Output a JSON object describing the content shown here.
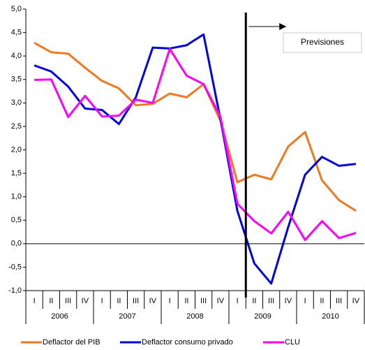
{
  "chart_data": {
    "type": "line",
    "categories": [
      "I",
      "II",
      "III",
      "IV",
      "I",
      "II",
      "III",
      "IV",
      "I",
      "II",
      "III",
      "IV",
      "I",
      "II",
      "III",
      "IV",
      "I",
      "II",
      "III",
      "IV"
    ],
    "years": [
      "2006",
      "2007",
      "2008",
      "2009",
      "2010"
    ],
    "annotation": "Previsiones",
    "ylim": [
      -1.0,
      5.0
    ],
    "yticks": [
      {
        "value": -1.0,
        "label": "-1,0"
      },
      {
        "value": -0.5,
        "label": "-0,5"
      },
      {
        "value": 0.0,
        "label": "0,0"
      },
      {
        "value": 0.5,
        "label": "0,5"
      },
      {
        "value": 1.0,
        "label": "1,0"
      },
      {
        "value": 1.5,
        "label": "1,5"
      },
      {
        "value": 2.0,
        "label": "2,0"
      },
      {
        "value": 2.5,
        "label": "2,5"
      },
      {
        "value": 3.0,
        "label": "3,0"
      },
      {
        "value": 3.5,
        "label": "3,5"
      },
      {
        "value": 4.0,
        "label": "4,0"
      },
      {
        "value": 4.5,
        "label": "4,5"
      },
      {
        "value": 5.0,
        "label": "5,0"
      }
    ],
    "series": [
      {
        "name": "Deflactor del PIB",
        "color": "#f07820",
        "values": [
          4.28,
          4.08,
          4.05,
          3.75,
          3.47,
          3.31,
          2.95,
          2.98,
          3.2,
          3.12,
          3.4,
          2.62,
          1.31,
          1.47,
          1.37,
          2.07,
          2.38,
          1.35,
          0.93,
          0.7
        ]
      },
      {
        "name": "Deflactor consumo privado",
        "color": "#0000e0",
        "values": [
          3.8,
          3.67,
          3.35,
          2.88,
          2.85,
          2.55,
          3.12,
          4.18,
          4.16,
          4.23,
          4.46,
          2.65,
          0.7,
          -0.42,
          -0.85,
          0.35,
          1.47,
          1.85,
          1.66,
          1.7
        ]
      },
      {
        "name": "CLU",
        "color": "#ff00ff",
        "values": [
          3.49,
          3.5,
          2.7,
          3.15,
          2.71,
          2.73,
          3.07,
          3.0,
          4.15,
          3.58,
          3.4,
          2.7,
          0.85,
          0.48,
          0.22,
          0.68,
          0.08,
          0.48,
          0.12,
          0.23
        ]
      }
    ]
  }
}
